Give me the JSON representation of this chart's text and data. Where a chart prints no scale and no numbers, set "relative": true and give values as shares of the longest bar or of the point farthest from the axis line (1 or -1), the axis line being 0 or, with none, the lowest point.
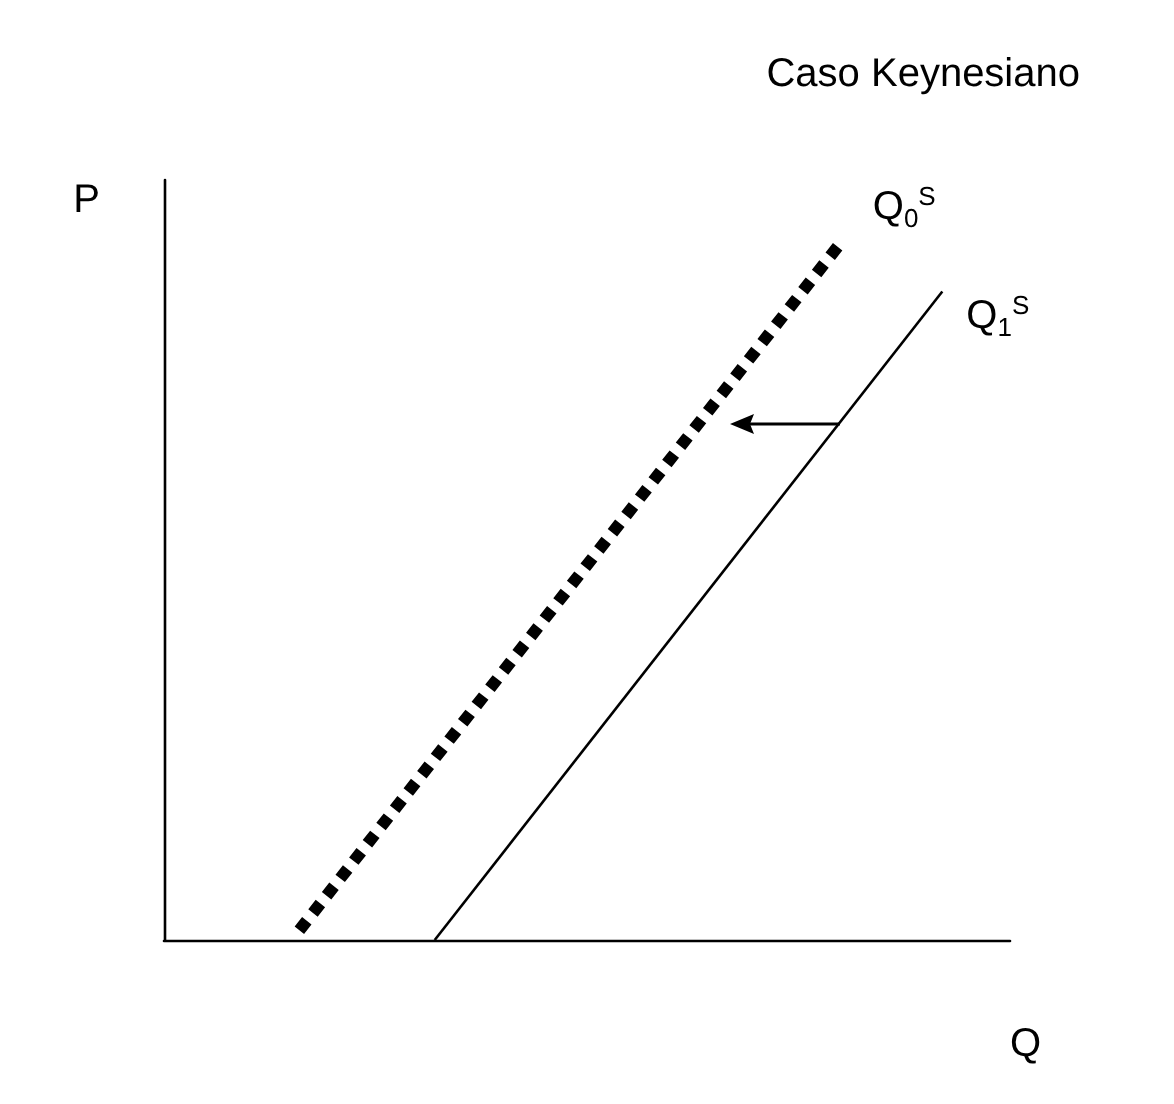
{
  "chart_data": {
    "type": "line",
    "title": "Caso Keynesiano",
    "xlabel": "Q",
    "ylabel": "P",
    "relative": true,
    "legend": false,
    "grid": false,
    "marker": "none",
    "categories": [
      null,
      null,
      null,
      null,
      null,
      null,
      null,
      null,
      null,
      null,
      null,
      null,
      null,
      null,
      null,
      null,
      null,
      null,
      null,
      null,
      null,
      null,
      null,
      null,
      null,
      null
    ],
    "series": [
      {
        "name": "Q$_{0}$$^{S}$",
        "color": "#000000",
        "line_style": "dotted",
        "values": [
          null,
          null,
          null,
          null,
          0.014,
          null,
          null,
          null,
          null,
          null,
          null,
          null,
          null,
          null,
          null,
          null,
          null,
          null,
          null,
          null,
          1,
          null,
          null,
          null,
          null,
          null
        ]
      },
      {
        "name": "Q$_{1}$$^{S}$",
        "color": "#000000",
        "line_style": "solid",
        "values": [
          null,
          null,
          null,
          null,
          null,
          null,
          null,
          null,
          0,
          null,
          null,
          null,
          null,
          null,
          null,
          null,
          null,
          null,
          null,
          null,
          null,
          null,
          null,
          0.93,
          null,
          null
        ]
      }
    ]
  }
}
